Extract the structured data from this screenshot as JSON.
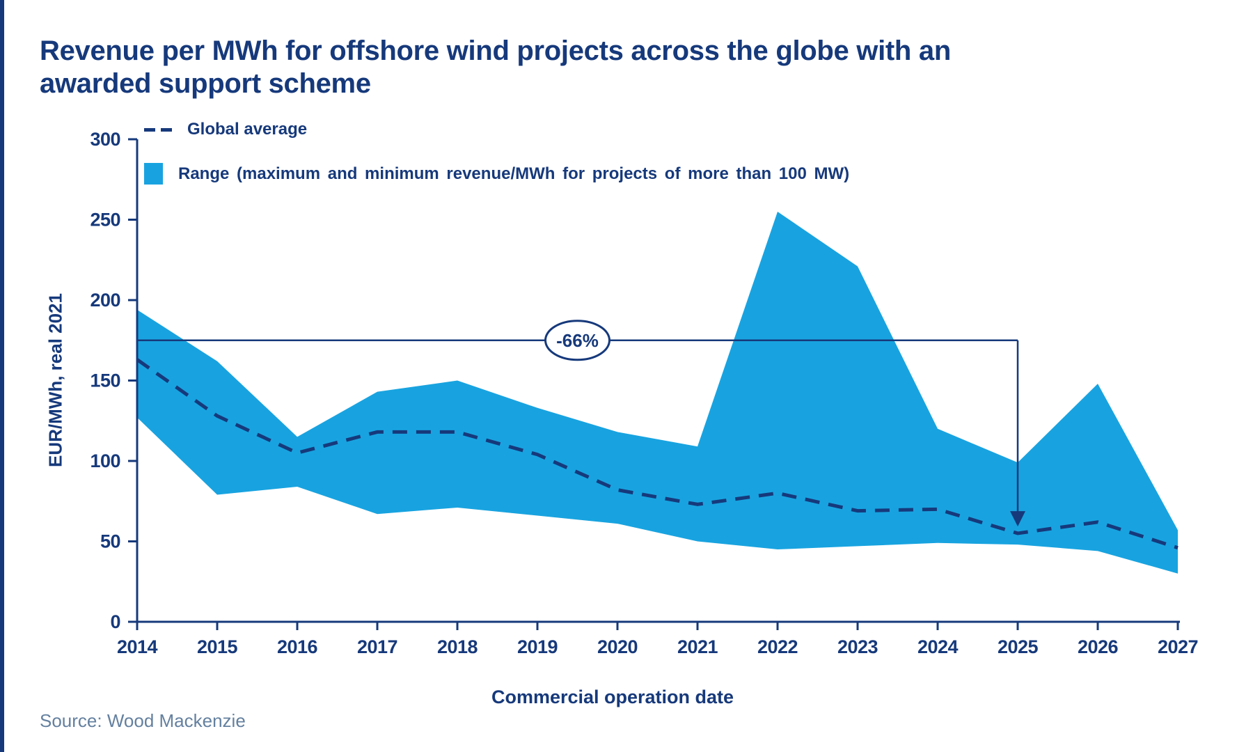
{
  "title": "Revenue per MWh for offshore wind projects across the globe with an awarded support scheme",
  "source": "Source: Wood Mackenzie",
  "legend": [
    {
      "swatch": "dashed-line",
      "label": "Global average"
    },
    {
      "swatch": "area",
      "label": "Range (maximum and minimum revenue/MWh  for projects of more than 100 MW)"
    }
  ],
  "colors": {
    "band": "#18a3e0",
    "navy": "#16397b",
    "source_text": "#64809f",
    "background": "#ffffff"
  },
  "chart_data": {
    "type": "area",
    "title": "Revenue per MWh for offshore wind projects across the globe with an awarded support scheme",
    "xlabel": "Commercial operation date",
    "ylabel": "EUR/MWh, real 2021",
    "x": [
      2014,
      2015,
      2016,
      2017,
      2018,
      2019,
      2020,
      2021,
      2022,
      2023,
      2024,
      2025,
      2026,
      2027
    ],
    "series": [
      {
        "name": "Range maximum revenue/MWh",
        "values": [
          194,
          162,
          115,
          143,
          150,
          133,
          118,
          109,
          255,
          221,
          120,
          99,
          148,
          57
        ]
      },
      {
        "name": "Global average",
        "values": [
          163,
          128,
          105,
          118,
          118,
          104,
          82,
          73,
          80,
          69,
          70,
          55,
          62,
          46
        ]
      },
      {
        "name": "Range minimum revenue/MWh",
        "values": [
          127,
          79,
          84,
          67,
          71,
          66,
          61,
          50,
          45,
          47,
          49,
          48,
          44,
          30
        ]
      }
    ],
    "ylim": [
      0,
      300
    ],
    "y_ticks": [
      0,
      50,
      100,
      150,
      200,
      250,
      300
    ],
    "grid": false,
    "legend_position": "top-left",
    "annotation": {
      "label": "-66%",
      "line_value": 175,
      "from_year": 2014,
      "to_year": 2025,
      "arrow_tip_value": 61,
      "label_year": 2019.5
    }
  }
}
